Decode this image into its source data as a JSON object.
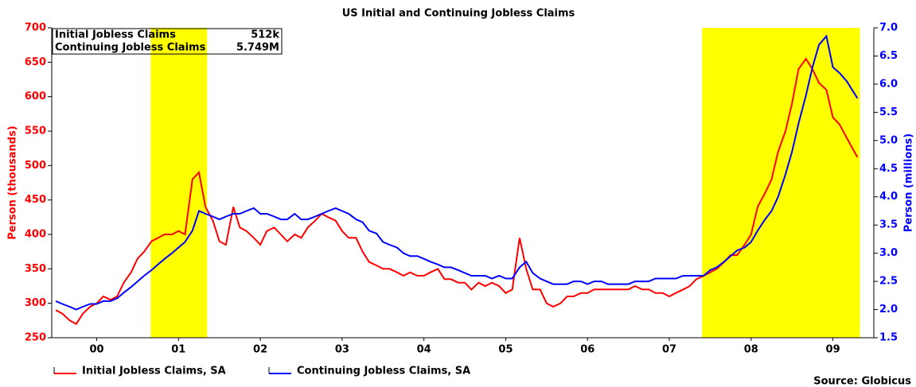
{
  "chart_data": {
    "type": "line",
    "title": "US Initial and Continuing Jobless Claims",
    "ylabel": "Person (thousands)",
    "y2label": "Person (millions)",
    "source": "Source: Globicus",
    "annotations": [
      {
        "label": "Initial Jobless Claims",
        "value": "512k"
      },
      {
        "label": "Continuing Jobless Claims",
        "value": "5.749M"
      }
    ],
    "shaded_periods": [
      [
        2001.16,
        2001.85
      ],
      [
        2007.9,
        2009.83
      ]
    ],
    "shade_color": "#ffff00",
    "xlim": [
      1999.95,
      2010.0
    ],
    "xticks": [
      {
        "value": 2000.5,
        "label": "00"
      },
      {
        "value": 2001.5,
        "label": "01"
      },
      {
        "value": 2002.5,
        "label": "02"
      },
      {
        "value": 2003.5,
        "label": "03"
      },
      {
        "value": 2004.5,
        "label": "04"
      },
      {
        "value": 2005.5,
        "label": "05"
      },
      {
        "value": 2006.5,
        "label": "06"
      },
      {
        "value": 2007.5,
        "label": "07"
      },
      {
        "value": 2008.5,
        "label": "08"
      },
      {
        "value": 2009.5,
        "label": "09"
      }
    ],
    "ylim": [
      250,
      700
    ],
    "yticks": [
      250,
      300,
      350,
      400,
      450,
      500,
      550,
      600,
      650,
      700
    ],
    "y2lim": [
      1.5,
      7.0
    ],
    "y2ticks": [
      1.5,
      {
        "value": 2,
        "label": "2.0"
      },
      2.5,
      {
        "value": 3,
        "label": "3.0"
      },
      3.5,
      {
        "value": 4,
        "label": "4.0"
      },
      4.5,
      {
        "value": 5,
        "label": "5.0"
      },
      5.5,
      {
        "value": 6,
        "label": "6.0"
      },
      6.5,
      {
        "value": 7,
        "label": "7.0"
      }
    ],
    "x": [
      2000.0,
      2000.08,
      2000.17,
      2000.25,
      2000.33,
      2000.42,
      2000.5,
      2000.58,
      2000.67,
      2000.75,
      2000.83,
      2000.92,
      2001.0,
      2001.08,
      2001.17,
      2001.25,
      2001.33,
      2001.42,
      2001.5,
      2001.58,
      2001.67,
      2001.75,
      2001.83,
      2001.92,
      2002.0,
      2002.08,
      2002.17,
      2002.25,
      2002.33,
      2002.42,
      2002.5,
      2002.58,
      2002.67,
      2002.75,
      2002.83,
      2002.92,
      2003.0,
      2003.08,
      2003.17,
      2003.25,
      2003.33,
      2003.42,
      2003.5,
      2003.58,
      2003.67,
      2003.75,
      2003.83,
      2003.92,
      2004.0,
      2004.08,
      2004.17,
      2004.25,
      2004.33,
      2004.42,
      2004.5,
      2004.58,
      2004.67,
      2004.75,
      2004.83,
      2004.92,
      2005.0,
      2005.08,
      2005.17,
      2005.25,
      2005.33,
      2005.42,
      2005.5,
      2005.58,
      2005.67,
      2005.75,
      2005.83,
      2005.92,
      2006.0,
      2006.08,
      2006.17,
      2006.25,
      2006.33,
      2006.42,
      2006.5,
      2006.58,
      2006.67,
      2006.75,
      2006.83,
      2006.92,
      2007.0,
      2007.08,
      2007.17,
      2007.25,
      2007.33,
      2007.42,
      2007.5,
      2007.58,
      2007.67,
      2007.75,
      2007.83,
      2007.92,
      2008.0,
      2008.08,
      2008.17,
      2008.25,
      2008.33,
      2008.42,
      2008.5,
      2008.58,
      2008.67,
      2008.75,
      2008.83,
      2008.92,
      2009.0,
      2009.08,
      2009.17,
      2009.25,
      2009.33,
      2009.42,
      2009.5,
      2009.58,
      2009.67,
      2009.8
    ],
    "series": [
      {
        "name": "Initial Jobless Claims, SA",
        "color": "#ff0000",
        "values": [
          290,
          285,
          275,
          270,
          285,
          295,
          300,
          310,
          305,
          310,
          330,
          345,
          365,
          375,
          390,
          395,
          400,
          400,
          405,
          400,
          480,
          490,
          440,
          420,
          390,
          385,
          440,
          410,
          405,
          395,
          385,
          405,
          410,
          400,
          390,
          400,
          395,
          410,
          420,
          430,
          425,
          420,
          405,
          395,
          395,
          375,
          360,
          355,
          350,
          350,
          345,
          340,
          345,
          340,
          340,
          345,
          350,
          335,
          335,
          330,
          330,
          320,
          330,
          325,
          330,
          325,
          315,
          320,
          395,
          350,
          320,
          320,
          300,
          295,
          300,
          310,
          310,
          315,
          315,
          320,
          320,
          320,
          320,
          320,
          320,
          325,
          320,
          320,
          315,
          315,
          310,
          315,
          320,
          325,
          335,
          340,
          345,
          350,
          360,
          370,
          370,
          385,
          400,
          440,
          460,
          480,
          520,
          550,
          590,
          640,
          655,
          640,
          620,
          610,
          570,
          560,
          540,
          512
        ]
      },
      {
        "name": "Continuing Jobless Claims, SA",
        "color": "#0000ff",
        "axis": "y2",
        "values": [
          2.15,
          2.1,
          2.05,
          2.0,
          2.05,
          2.1,
          2.1,
          2.15,
          2.15,
          2.2,
          2.3,
          2.4,
          2.5,
          2.6,
          2.7,
          2.8,
          2.9,
          3.0,
          3.1,
          3.2,
          3.4,
          3.75,
          3.7,
          3.65,
          3.6,
          3.65,
          3.7,
          3.7,
          3.75,
          3.8,
          3.7,
          3.7,
          3.65,
          3.6,
          3.6,
          3.7,
          3.6,
          3.6,
          3.65,
          3.7,
          3.75,
          3.8,
          3.75,
          3.7,
          3.6,
          3.55,
          3.4,
          3.35,
          3.2,
          3.15,
          3.1,
          3.0,
          2.95,
          2.95,
          2.9,
          2.85,
          2.8,
          2.75,
          2.75,
          2.7,
          2.65,
          2.6,
          2.6,
          2.6,
          2.55,
          2.6,
          2.55,
          2.55,
          2.75,
          2.85,
          2.65,
          2.55,
          2.5,
          2.45,
          2.45,
          2.45,
          2.5,
          2.5,
          2.45,
          2.5,
          2.5,
          2.45,
          2.45,
          2.45,
          2.45,
          2.5,
          2.5,
          2.5,
          2.55,
          2.55,
          2.55,
          2.55,
          2.6,
          2.6,
          2.6,
          2.6,
          2.7,
          2.75,
          2.85,
          2.95,
          3.05,
          3.1,
          3.2,
          3.4,
          3.6,
          3.75,
          4.0,
          4.4,
          4.8,
          5.3,
          5.8,
          6.3,
          6.7,
          6.85,
          6.3,
          6.2,
          6.05,
          5.749
        ]
      }
    ]
  }
}
